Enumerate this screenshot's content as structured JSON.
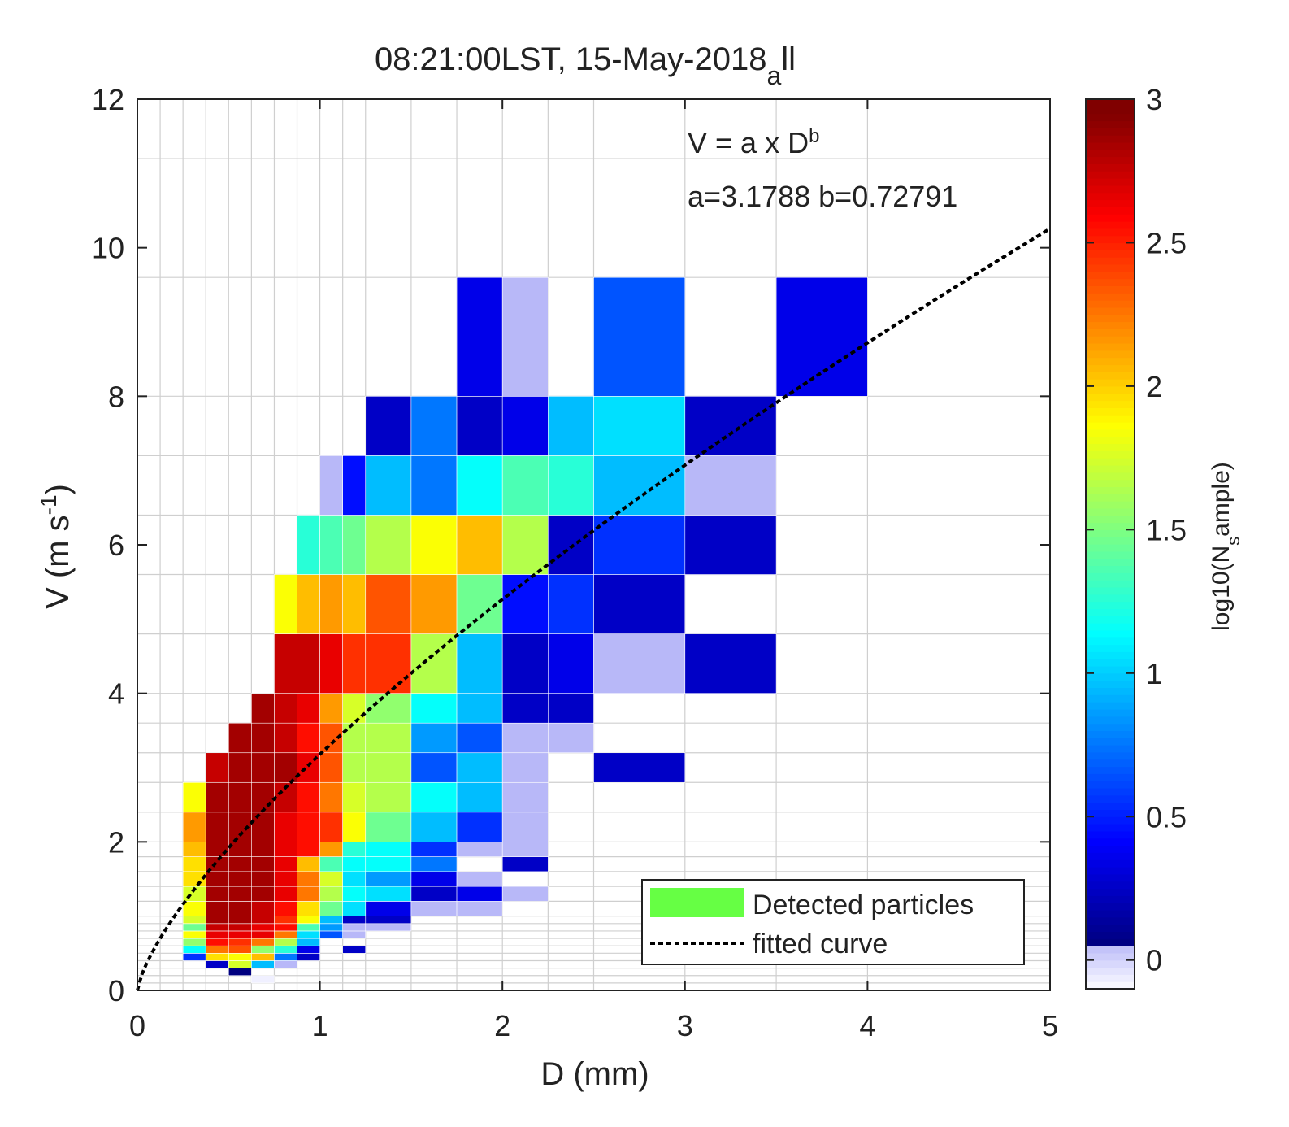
{
  "chart_data": {
    "type": "heatmap",
    "title": "08:21:00LST, 15-May-2018",
    "title_subscript": "a",
    "title_suffix": "ll",
    "xlabel": "D (mm)",
    "ylabel": "V (m s",
    "ylabel_superscript": "-1",
    "ylabel_end": ")",
    "xlim": [
      0,
      5
    ],
    "ylim": [
      0,
      12
    ],
    "x_ticks": [
      0,
      1,
      2,
      3,
      4,
      5
    ],
    "y_ticks": [
      0,
      2,
      4,
      6,
      8,
      10,
      12
    ],
    "grid": true,
    "d_bin_edges": [
      0,
      0.125,
      0.25,
      0.375,
      0.5,
      0.625,
      0.75,
      0.875,
      1,
      1.125,
      1.25,
      1.5,
      1.75,
      2,
      2.25,
      2.5,
      3,
      3.5,
      4,
      5
    ],
    "v_bin_edges": [
      0,
      0.1,
      0.2,
      0.3,
      0.4,
      0.5,
      0.6,
      0.7,
      0.8,
      0.9,
      1,
      1.2,
      1.4,
      1.6,
      1.8,
      2,
      2.4,
      2.8,
      3.2,
      3.6,
      4,
      4.8,
      5.6,
      6.4,
      7.2,
      8,
      9.6,
      11.2,
      12.8
    ],
    "cells": [
      [
        0.375,
        0.5,
        0.4,
        0.5,
        0.8
      ],
      [
        0.5,
        0.625,
        0.2,
        0.3,
        0.1
      ],
      [
        0.625,
        0.75,
        0.1,
        0.2,
        -0.1
      ],
      [
        0.25,
        0.375,
        0.4,
        0.5,
        0.6
      ],
      [
        0.375,
        0.5,
        0.3,
        0.4,
        0.3
      ],
      [
        0.5,
        0.625,
        0.3,
        0.4,
        1.8
      ],
      [
        0.625,
        0.75,
        0.3,
        0.4,
        1.0
      ],
      [
        0.75,
        0.875,
        0.3,
        0.4,
        0.0
      ],
      [
        0.875,
        1,
        0.4,
        0.5,
        0.3
      ],
      [
        0.25,
        0.375,
        0.5,
        0.6,
        1.2
      ],
      [
        0.375,
        0.5,
        0.4,
        0.5,
        2.0
      ],
      [
        0.5,
        0.625,
        0.4,
        0.5,
        1.9
      ],
      [
        0.625,
        0.75,
        0.4,
        0.5,
        2.1
      ],
      [
        0.75,
        0.875,
        0.4,
        0.5,
        0.8
      ],
      [
        0.875,
        1,
        0.5,
        0.6,
        0.4
      ],
      [
        0.25,
        0.375,
        0.6,
        0.7,
        1.6
      ],
      [
        0.375,
        0.5,
        0.5,
        0.6,
        2.3
      ],
      [
        0.5,
        0.625,
        0.5,
        0.6,
        2.4
      ],
      [
        0.625,
        0.75,
        0.5,
        0.6,
        1.6
      ],
      [
        0.75,
        0.875,
        0.5,
        0.6,
        1.3
      ],
      [
        0.875,
        1,
        0.6,
        0.7,
        1.0
      ],
      [
        1,
        1.125,
        0.7,
        0.8,
        0.7
      ],
      [
        1.25,
        1.5,
        0.9,
        1.0,
        0.3
      ],
      [
        1.125,
        1.25,
        0.5,
        0.6,
        0.3
      ],
      [
        0.25,
        0.375,
        0.7,
        0.8,
        1.9
      ],
      [
        0.375,
        0.5,
        0.6,
        0.7,
        2.6
      ],
      [
        0.5,
        0.625,
        0.6,
        0.7,
        2.5
      ],
      [
        0.625,
        0.75,
        0.6,
        0.7,
        2.3
      ],
      [
        0.75,
        0.875,
        0.6,
        0.7,
        1.7
      ],
      [
        0.875,
        1,
        0.7,
        0.8,
        1.1
      ],
      [
        1,
        1.125,
        0.8,
        0.9,
        0.9
      ],
      [
        1.125,
        1.25,
        0.7,
        0.8,
        0.0
      ],
      [
        0.25,
        0.375,
        0.8,
        0.9,
        1.5
      ],
      [
        0.375,
        0.5,
        0.7,
        0.8,
        2.7
      ],
      [
        0.5,
        0.625,
        0.7,
        0.8,
        2.7
      ],
      [
        0.625,
        0.75,
        0.7,
        0.8,
        2.7
      ],
      [
        0.75,
        0.875,
        0.7,
        0.8,
        2.3
      ],
      [
        0.875,
        1,
        0.8,
        0.9,
        1.4
      ],
      [
        1,
        1.125,
        0.9,
        1.0,
        1.0
      ],
      [
        1.125,
        1.25,
        0.8,
        0.9,
        0.0
      ],
      [
        1.25,
        1.5,
        0.8,
        0.9,
        0.0
      ],
      [
        0.25,
        0.375,
        0.9,
        1.0,
        1.8
      ],
      [
        0.375,
        0.5,
        0.8,
        0.9,
        2.8
      ],
      [
        0.5,
        0.625,
        0.8,
        0.9,
        2.8
      ],
      [
        0.625,
        0.75,
        0.8,
        0.9,
        2.7
      ],
      [
        0.75,
        0.875,
        0.8,
        0.9,
        2.6
      ],
      [
        0.875,
        1,
        0.9,
        1.0,
        1.9
      ],
      [
        1,
        1.125,
        1.0,
        1.2,
        1.5
      ],
      [
        1.125,
        1.25,
        0.9,
        1.0,
        0.3
      ],
      [
        1.25,
        1.5,
        1.0,
        1.2,
        0.4
      ],
      [
        0.375,
        0.5,
        0.9,
        1.0,
        2.9
      ],
      [
        0.5,
        0.625,
        0.9,
        1.0,
        2.9
      ],
      [
        0.625,
        0.75,
        0.9,
        1.0,
        2.8
      ],
      [
        0.75,
        0.875,
        0.9,
        1.0,
        2.5
      ],
      [
        1.5,
        1.75,
        1.0,
        1.2,
        0.0
      ],
      [
        1.75,
        2,
        1.0,
        1.2,
        0.0
      ],
      [
        0.25,
        0.375,
        1.0,
        1.2,
        1.9
      ],
      [
        0.375,
        0.5,
        1.0,
        1.2,
        2.9
      ],
      [
        0.5,
        0.625,
        1.0,
        1.2,
        2.9
      ],
      [
        0.625,
        0.75,
        1.0,
        1.2,
        2.8
      ],
      [
        0.75,
        0.875,
        1.0,
        1.2,
        2.6
      ],
      [
        0.875,
        1,
        1.0,
        1.2,
        2.0
      ],
      [
        1.125,
        1.25,
        1.0,
        1.2,
        1.1
      ],
      [
        1.25,
        1.5,
        1.2,
        1.4,
        1.1
      ],
      [
        0.25,
        0.375,
        1.2,
        1.4,
        1.8
      ],
      [
        0.375,
        0.5,
        1.2,
        1.4,
        2.9
      ],
      [
        0.5,
        0.625,
        1.2,
        1.4,
        2.9
      ],
      [
        0.625,
        0.75,
        1.2,
        1.4,
        2.9
      ],
      [
        0.75,
        0.875,
        1.2,
        1.4,
        2.7
      ],
      [
        0.875,
        1,
        1.2,
        1.4,
        2.3
      ],
      [
        1,
        1.125,
        1.2,
        1.4,
        1.7
      ],
      [
        1.125,
        1.25,
        1.2,
        1.4,
        1.2
      ],
      [
        1.5,
        1.75,
        1.2,
        1.4,
        0.3
      ],
      [
        1.75,
        2,
        1.2,
        1.4,
        0.4
      ],
      [
        2,
        2.25,
        1.2,
        1.4,
        0.0
      ],
      [
        0.25,
        0.375,
        1.4,
        1.6,
        2.0
      ],
      [
        0.375,
        0.5,
        1.4,
        1.6,
        2.9
      ],
      [
        0.5,
        0.625,
        1.4,
        1.6,
        2.9
      ],
      [
        0.625,
        0.75,
        1.4,
        1.6,
        2.9
      ],
      [
        0.75,
        0.875,
        1.4,
        1.6,
        2.7
      ],
      [
        0.875,
        1,
        1.4,
        1.6,
        2.3
      ],
      [
        1,
        1.125,
        1.4,
        1.6,
        1.8
      ],
      [
        1.125,
        1.25,
        1.4,
        1.6,
        1.1
      ],
      [
        1.25,
        1.5,
        1.4,
        1.6,
        0.9
      ],
      [
        1.5,
        1.75,
        1.4,
        1.6,
        0.4
      ],
      [
        1.75,
        2,
        1.4,
        1.6,
        0.0
      ],
      [
        0.25,
        0.375,
        1.6,
        1.8,
        2.0
      ],
      [
        0.375,
        0.5,
        1.6,
        1.8,
        2.9
      ],
      [
        0.5,
        0.625,
        1.6,
        1.8,
        2.9
      ],
      [
        0.625,
        0.75,
        1.6,
        1.8,
        2.9
      ],
      [
        0.75,
        0.875,
        1.6,
        1.8,
        2.7
      ],
      [
        0.875,
        1,
        1.6,
        1.8,
        2.1
      ],
      [
        1,
        1.125,
        1.6,
        1.8,
        1.4
      ],
      [
        1.125,
        1.25,
        1.6,
        1.8,
        1.2
      ],
      [
        1.25,
        1.5,
        1.6,
        1.8,
        1.2
      ],
      [
        1.5,
        1.75,
        1.6,
        1.8,
        0.8
      ],
      [
        2,
        2.25,
        1.6,
        1.8,
        0.3
      ],
      [
        0.25,
        0.375,
        1.8,
        2.0,
        2.1
      ],
      [
        0.375,
        0.5,
        1.8,
        2.0,
        2.9
      ],
      [
        0.5,
        0.625,
        1.8,
        2.0,
        2.9
      ],
      [
        0.625,
        0.75,
        1.8,
        2.0,
        2.9
      ],
      [
        0.75,
        0.875,
        1.8,
        2.0,
        2.7
      ],
      [
        0.875,
        1,
        1.8,
        2.0,
        2.6
      ],
      [
        1,
        1.125,
        1.8,
        2.0,
        2.2
      ],
      [
        1.125,
        1.25,
        1.8,
        2.0,
        1.3
      ],
      [
        1.25,
        1.5,
        1.8,
        2.0,
        1.2
      ],
      [
        1.5,
        1.75,
        1.8,
        2.0,
        0.6
      ],
      [
        1.75,
        2,
        1.8,
        2.0,
        0.0
      ],
      [
        2,
        2.25,
        1.8,
        2.0,
        0.0
      ],
      [
        0.25,
        0.375,
        2.0,
        2.4,
        2.2
      ],
      [
        0.375,
        0.5,
        2.0,
        2.4,
        2.9
      ],
      [
        0.5,
        0.625,
        2.0,
        2.4,
        2.9
      ],
      [
        0.625,
        0.75,
        2.0,
        2.4,
        2.9
      ],
      [
        0.75,
        0.875,
        2.0,
        2.4,
        2.7
      ],
      [
        0.875,
        1,
        2.0,
        2.4,
        2.6
      ],
      [
        1,
        1.125,
        2.0,
        2.4,
        2.5
      ],
      [
        1.125,
        1.25,
        2.0,
        2.4,
        1.9
      ],
      [
        1.25,
        1.5,
        2.0,
        2.4,
        1.5
      ],
      [
        1.5,
        1.75,
        2.0,
        2.4,
        1.0
      ],
      [
        1.75,
        2,
        2.0,
        2.4,
        0.6
      ],
      [
        2,
        2.25,
        2.0,
        2.4,
        0.0
      ],
      [
        0.25,
        0.375,
        2.4,
        2.8,
        1.9
      ],
      [
        0.375,
        0.5,
        2.4,
        2.8,
        2.9
      ],
      [
        0.5,
        0.625,
        2.4,
        2.8,
        2.9
      ],
      [
        0.625,
        0.75,
        2.4,
        2.8,
        2.9
      ],
      [
        0.75,
        0.875,
        2.4,
        2.8,
        2.8
      ],
      [
        0.875,
        1,
        2.4,
        2.8,
        2.6
      ],
      [
        1,
        1.125,
        2.4,
        2.8,
        2.3
      ],
      [
        1.125,
        1.25,
        2.4,
        2.8,
        1.8
      ],
      [
        1.25,
        1.5,
        2.4,
        2.8,
        1.7
      ],
      [
        1.5,
        1.75,
        2.4,
        2.8,
        1.2
      ],
      [
        1.75,
        2,
        2.4,
        2.8,
        1.0
      ],
      [
        2,
        2.25,
        2.4,
        2.8,
        0.0
      ],
      [
        0.375,
        0.5,
        2.8,
        3.2,
        2.8
      ],
      [
        0.5,
        0.625,
        2.8,
        3.2,
        2.9
      ],
      [
        0.625,
        0.75,
        2.8,
        3.2,
        2.9
      ],
      [
        0.75,
        0.875,
        2.8,
        3.2,
        2.9
      ],
      [
        0.875,
        1,
        2.8,
        3.2,
        2.7
      ],
      [
        1,
        1.125,
        2.8,
        3.2,
        2.4
      ],
      [
        1.125,
        1.25,
        2.8,
        3.2,
        1.7
      ],
      [
        1.25,
        1.5,
        2.8,
        3.2,
        1.7
      ],
      [
        1.5,
        1.75,
        2.8,
        3.2,
        0.7
      ],
      [
        1.75,
        2,
        2.8,
        3.2,
        1.0
      ],
      [
        2,
        2.25,
        2.8,
        3.2,
        0.0
      ],
      [
        2.5,
        3,
        2.8,
        3.2,
        0.3
      ],
      [
        0.5,
        0.625,
        3.2,
        3.6,
        2.9
      ],
      [
        0.625,
        0.75,
        3.2,
        3.6,
        2.9
      ],
      [
        0.75,
        0.875,
        3.2,
        3.6,
        2.8
      ],
      [
        0.875,
        1,
        3.2,
        3.6,
        2.6
      ],
      [
        1,
        1.125,
        3.2,
        3.6,
        2.4
      ],
      [
        1.125,
        1.25,
        3.2,
        3.6,
        1.7
      ],
      [
        1.25,
        1.5,
        3.2,
        3.6,
        1.7
      ],
      [
        1.5,
        1.75,
        3.2,
        3.6,
        0.9
      ],
      [
        1.75,
        2,
        3.2,
        3.6,
        0.7
      ],
      [
        2,
        2.25,
        3.2,
        3.6,
        0.0
      ],
      [
        2.25,
        2.5,
        3.2,
        3.6,
        0.0
      ],
      [
        0.625,
        0.75,
        3.6,
        4.0,
        2.9
      ],
      [
        0.75,
        0.875,
        3.6,
        4.0,
        2.8
      ],
      [
        0.875,
        1,
        3.6,
        4.0,
        2.7
      ],
      [
        1,
        1.125,
        3.6,
        4.0,
        2.2
      ],
      [
        1.125,
        1.25,
        3.6,
        4.0,
        1.8
      ],
      [
        1.25,
        1.5,
        3.6,
        4.0,
        1.6
      ],
      [
        1.5,
        1.75,
        3.6,
        4.0,
        1.2
      ],
      [
        1.75,
        2,
        3.6,
        4.0,
        1.0
      ],
      [
        2,
        2.25,
        3.6,
        4.0,
        0.3
      ],
      [
        2.25,
        2.5,
        3.6,
        4.0,
        0.3
      ],
      [
        0.75,
        0.875,
        4.0,
        4.8,
        2.8
      ],
      [
        0.875,
        1,
        4.0,
        4.8,
        2.8
      ],
      [
        1,
        1.125,
        4.0,
        4.8,
        2.7
      ],
      [
        1.125,
        1.25,
        4.0,
        4.8,
        2.5
      ],
      [
        1.25,
        1.5,
        4.0,
        4.8,
        2.5
      ],
      [
        1.5,
        1.75,
        4.0,
        4.8,
        1.7
      ],
      [
        1.75,
        2,
        4.0,
        4.8,
        1.0
      ],
      [
        2,
        2.25,
        4.0,
        4.8,
        0.3
      ],
      [
        2.25,
        2.5,
        4.0,
        4.8,
        0.4
      ],
      [
        2.5,
        3,
        4.0,
        4.8,
        0.0
      ],
      [
        3,
        3.5,
        4.0,
        4.8,
        0.3
      ],
      [
        0.75,
        0.875,
        4.8,
        5.6,
        1.9
      ],
      [
        0.875,
        1,
        4.8,
        5.6,
        2.1
      ],
      [
        1,
        1.125,
        4.8,
        5.6,
        2.2
      ],
      [
        1.125,
        1.25,
        4.8,
        5.6,
        2.1
      ],
      [
        1.25,
        1.5,
        4.8,
        5.6,
        2.4
      ],
      [
        1.5,
        1.75,
        4.8,
        5.6,
        2.2
      ],
      [
        1.75,
        2,
        4.8,
        5.6,
        1.5
      ],
      [
        2,
        2.25,
        4.8,
        5.6,
        0.5
      ],
      [
        2.25,
        2.5,
        4.8,
        5.6,
        0.6
      ],
      [
        2.5,
        3,
        4.8,
        5.6,
        0.3
      ],
      [
        0.875,
        1,
        5.6,
        6.4,
        1.3
      ],
      [
        1,
        1.125,
        5.6,
        6.4,
        1.4
      ],
      [
        1.125,
        1.25,
        5.6,
        6.4,
        1.5
      ],
      [
        1.25,
        1.5,
        5.6,
        6.4,
        1.7
      ],
      [
        1.5,
        1.75,
        5.6,
        6.4,
        1.9
      ],
      [
        1.75,
        2,
        5.6,
        6.4,
        2.1
      ],
      [
        2,
        2.25,
        5.6,
        6.4,
        1.7
      ],
      [
        2.25,
        2.5,
        5.6,
        6.4,
        0.3
      ],
      [
        2.5,
        3,
        5.6,
        6.4,
        0.6
      ],
      [
        3,
        3.5,
        5.6,
        6.4,
        0.3
      ],
      [
        1,
        1.125,
        6.4,
        7.2,
        0.0
      ],
      [
        1.125,
        1.25,
        6.4,
        7.2,
        0.5
      ],
      [
        1.25,
        1.5,
        6.4,
        7.2,
        1.0
      ],
      [
        1.5,
        1.75,
        6.4,
        7.2,
        0.8
      ],
      [
        1.75,
        2,
        6.4,
        7.2,
        1.2
      ],
      [
        2,
        2.25,
        6.4,
        7.2,
        1.4
      ],
      [
        2.25,
        2.5,
        6.4,
        7.2,
        1.3
      ],
      [
        2.5,
        3,
        6.4,
        7.2,
        1.0
      ],
      [
        3,
        3.5,
        6.4,
        7.2,
        0.0
      ],
      [
        1.25,
        1.5,
        7.2,
        8.0,
        0.3
      ],
      [
        1.5,
        1.75,
        7.2,
        8.0,
        0.8
      ],
      [
        1.75,
        2,
        7.2,
        8.0,
        0.3
      ],
      [
        2,
        2.25,
        7.2,
        8.0,
        0.4
      ],
      [
        2.25,
        2.5,
        7.2,
        8.0,
        1.0
      ],
      [
        2.5,
        3,
        7.2,
        8.0,
        1.1
      ],
      [
        3,
        3.5,
        7.2,
        8.0,
        0.3
      ],
      [
        1.75,
        2,
        8.0,
        9.6,
        0.4
      ],
      [
        2,
        2.25,
        8.0,
        9.6,
        0.0
      ],
      [
        2.5,
        3,
        8.0,
        9.6,
        0.7
      ],
      [
        3.5,
        4,
        8.0,
        9.6,
        0.4
      ]
    ],
    "fit": {
      "formula": "V = a x D",
      "exponent": "b",
      "params": "a=3.1788  b=0.72791",
      "a": 3.1788,
      "b": 0.72791
    },
    "legend": [
      "Detected particles",
      "fitted curve"
    ],
    "legend_position": "bottom-right",
    "legend_color": "#66ff44",
    "colorbar": {
      "label": "log10(N",
      "label_sub": "s",
      "label_end": "ample)",
      "range": [
        -0.1,
        3
      ],
      "ticks": [
        0,
        0.5,
        1,
        1.5,
        2,
        2.5,
        3
      ],
      "tick_labels": [
        "0",
        "0.5",
        "1",
        "1.5",
        "2",
        "2.5",
        "3"
      ],
      "colormap": "jet",
      "low_color": "#f0f0ff"
    }
  }
}
